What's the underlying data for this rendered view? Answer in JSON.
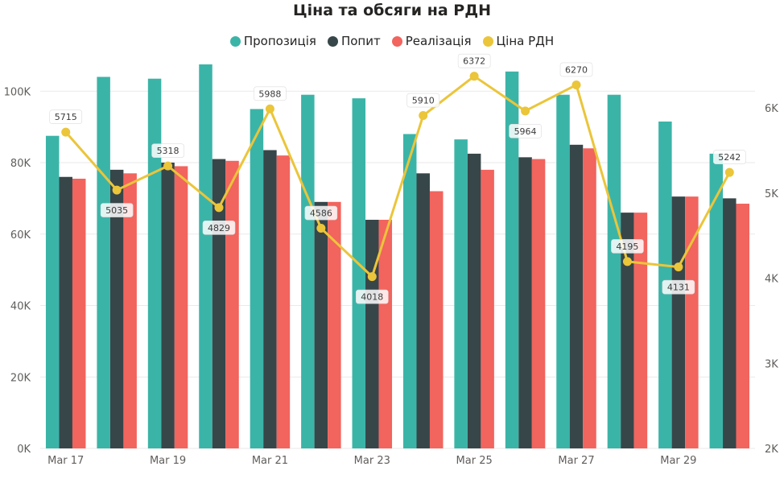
{
  "chart_data": {
    "type": "bar",
    "title": "Ціна та обсяги на РДН",
    "categories": [
      "Mar 17",
      "Mar 18",
      "Mar 19",
      "Mar 20",
      "Mar 21",
      "Mar 22",
      "Mar 23",
      "Mar 24",
      "Mar 25",
      "Mar 26",
      "Mar 27",
      "Mar 28",
      "Mar 29",
      "Mar 30"
    ],
    "x_tick_labels": [
      "Mar 17",
      "",
      "Mar 19",
      "",
      "Mar 21",
      "",
      "Mar 23",
      "",
      "Mar 25",
      "",
      "Mar 27",
      "",
      "Mar 29",
      ""
    ],
    "series": [
      {
        "name": "Пропозиція",
        "type": "bar",
        "axis": "left",
        "color": "#3bb4a8",
        "values": [
          87500,
          104000,
          103500,
          107500,
          95000,
          99000,
          98000,
          88000,
          86500,
          105500,
          99000,
          99000,
          91500,
          82500
        ]
      },
      {
        "name": "Попит",
        "type": "bar",
        "axis": "left",
        "color": "#374649",
        "values": [
          76000,
          78000,
          80000,
          81000,
          83500,
          69000,
          64000,
          77000,
          82500,
          81500,
          85000,
          66000,
          70500,
          70000
        ]
      },
      {
        "name": "Реалізація",
        "type": "bar",
        "axis": "left",
        "color": "#f2645e",
        "values": [
          75500,
          77000,
          79000,
          80500,
          82000,
          69000,
          64000,
          72000,
          78000,
          81000,
          84000,
          66000,
          70500,
          68500
        ]
      },
      {
        "name": "Ціна РДН",
        "type": "line",
        "axis": "right",
        "color": "#ebc53a",
        "values": [
          5715,
          5035,
          5318,
          4829,
          5988,
          4586,
          4018,
          5910,
          6372,
          5964,
          6270,
          4195,
          4131,
          5242
        ],
        "data_labels": [
          "5715",
          "5035",
          "5318",
          "4829",
          "5988",
          "4586",
          "4018",
          "5910",
          "6372",
          "5964",
          "6270",
          "4195",
          "4131",
          "5242"
        ]
      }
    ],
    "y_left": {
      "ticks": [
        "0K",
        "20K",
        "40K",
        "60K",
        "80K",
        "100K"
      ],
      "ylim": [
        0,
        112000
      ]
    },
    "y_right": {
      "ticks": [
        "2K",
        "3K",
        "4K",
        "5K",
        "6K"
      ],
      "ylim": [
        2000,
        6700
      ]
    },
    "grid": true,
    "legend": "top-center"
  }
}
